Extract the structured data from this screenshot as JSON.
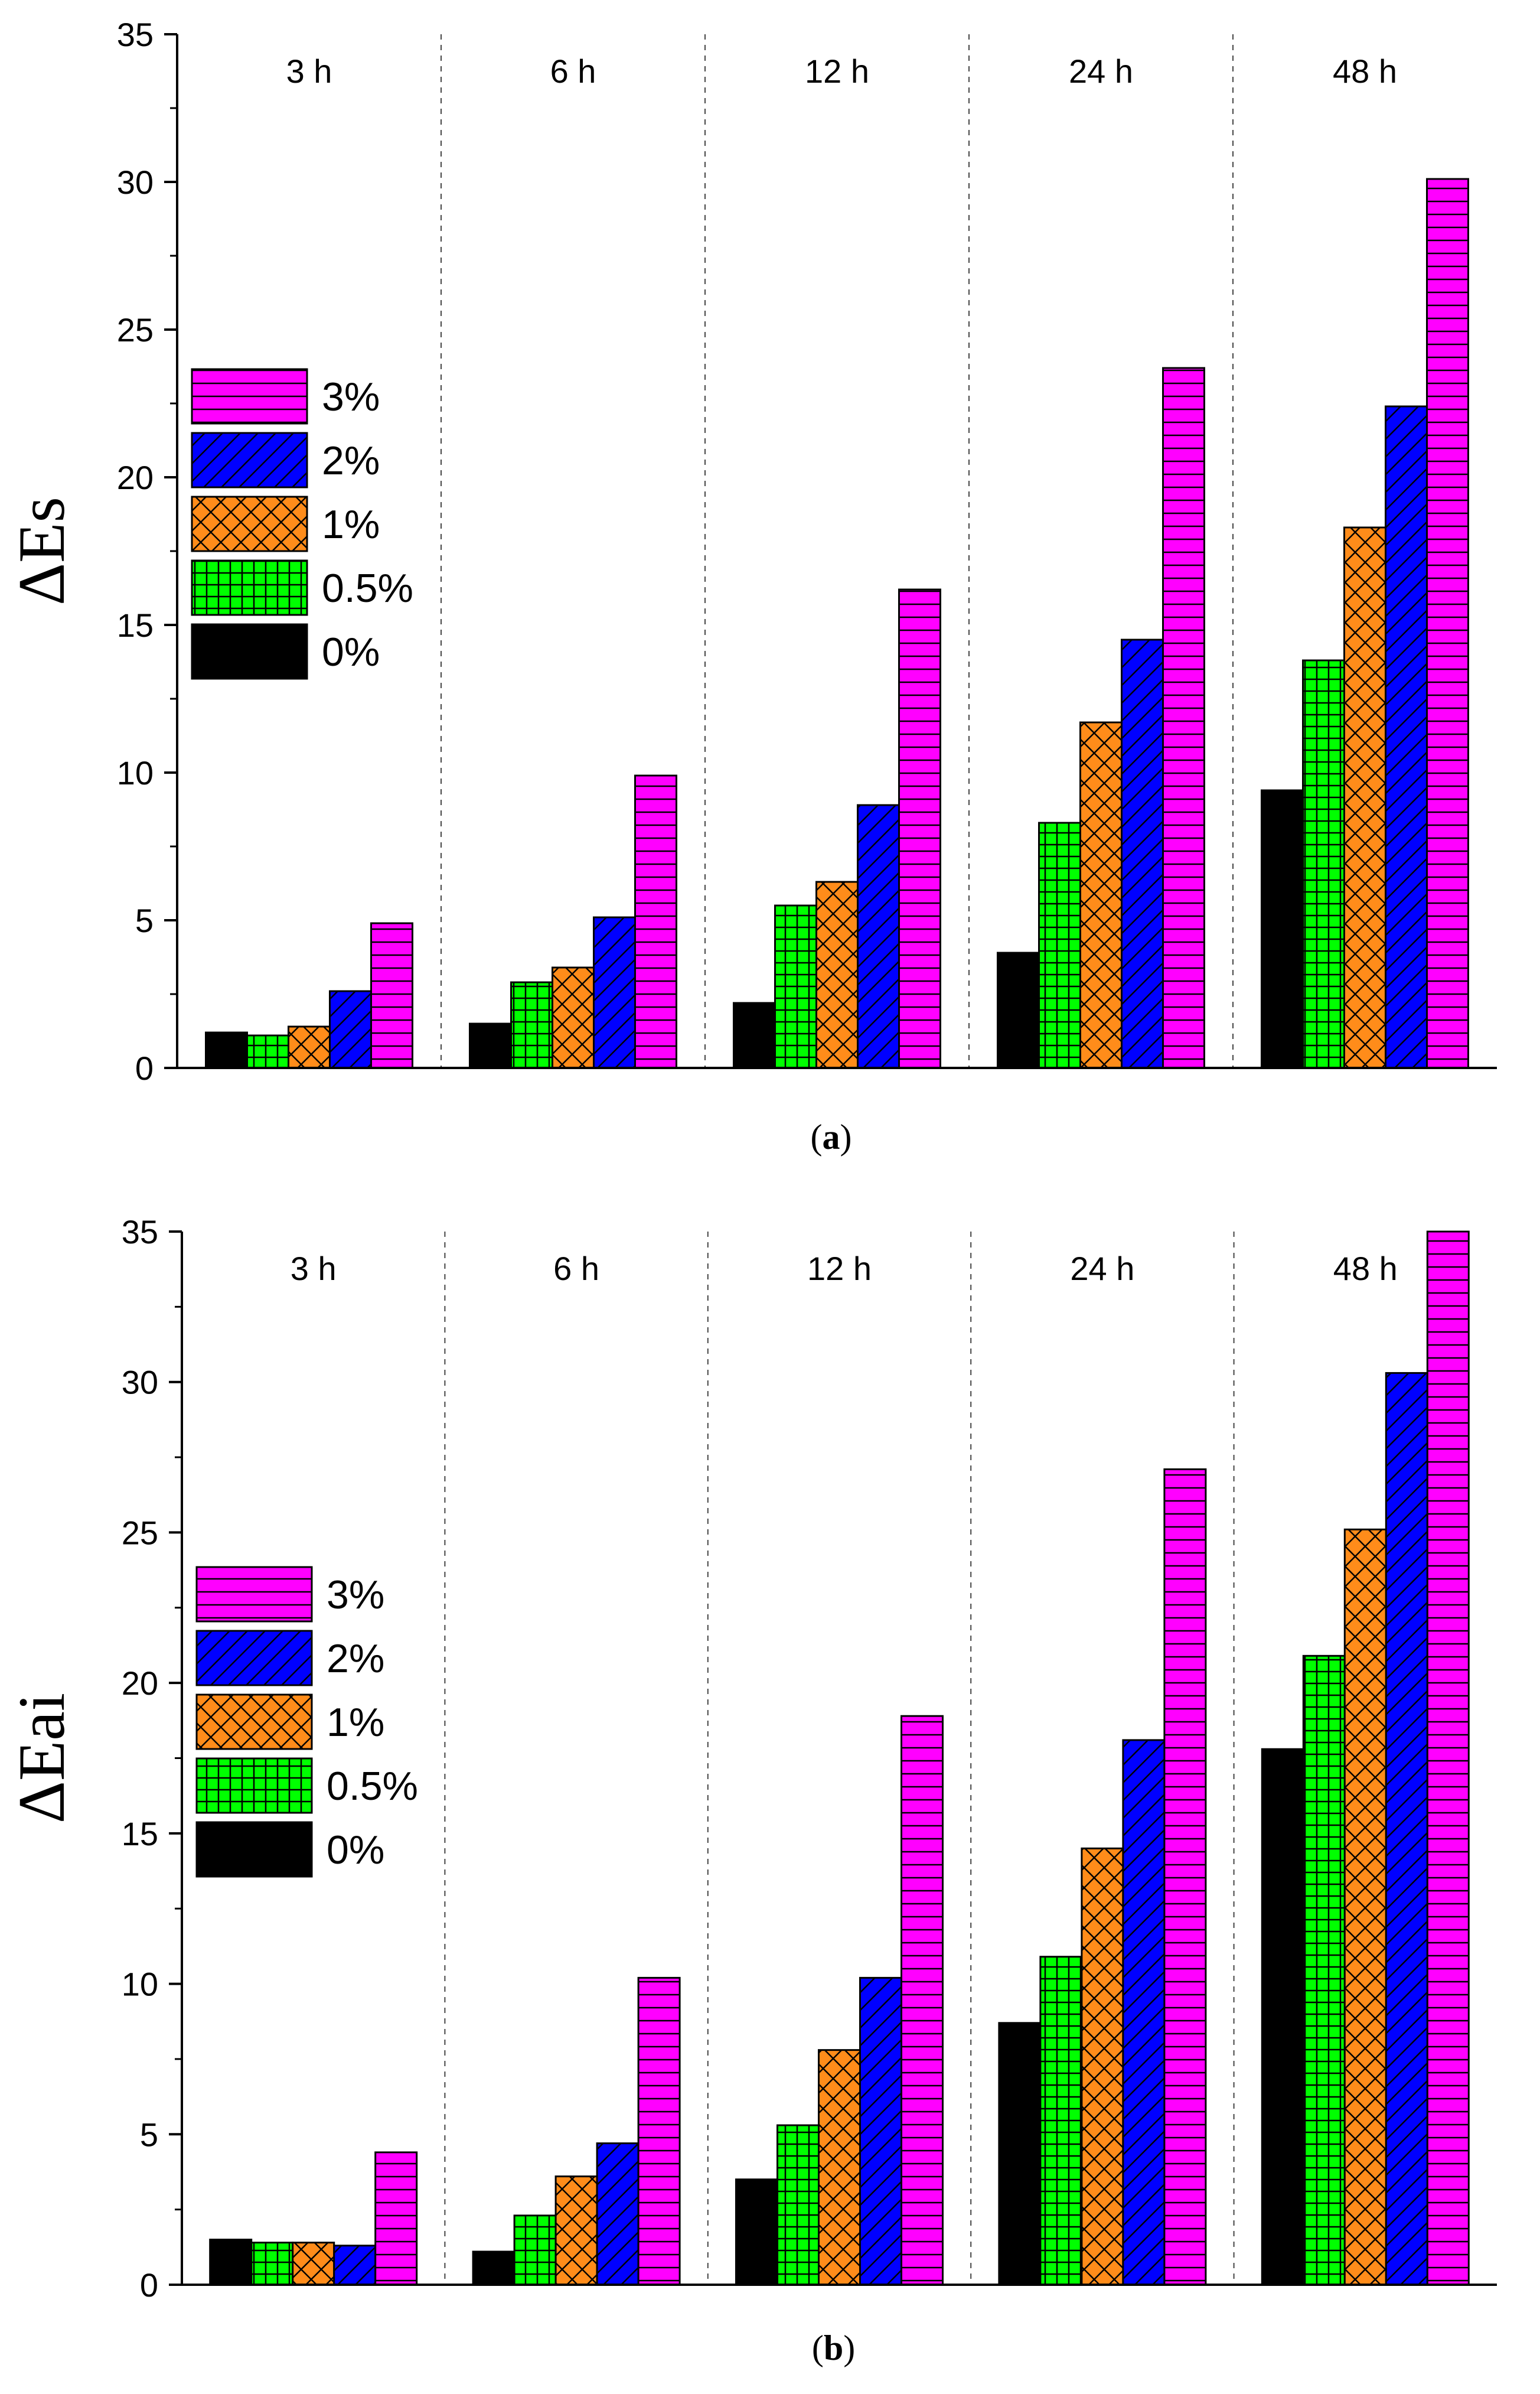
{
  "colors": {
    "0%": "#000000",
    "0.5%": "#00ff00",
    "1%": "#ff8c1a",
    "2%": "#0000ff",
    "3%": "#ff00ff"
  },
  "patterns": {
    "0%": "solid",
    "0.5%": "grid",
    "1%": "crosshatch",
    "2%": "diagonal",
    "3%": "horizontal"
  },
  "chart_data": [
    {
      "type": "bar",
      "caption": "(a)",
      "caption_letter": "a",
      "ylabel": "ΔEs",
      "ylim": [
        0,
        35
      ],
      "yticks": [
        0,
        5,
        10,
        15,
        20,
        25,
        30,
        35
      ],
      "categories": [
        "3 h",
        "6 h",
        "12 h",
        "24 h",
        "48 h"
      ],
      "legend_position": "upper-left",
      "series": [
        {
          "name": "0%",
          "values": [
            1.2,
            1.5,
            2.2,
            3.9,
            9.4
          ]
        },
        {
          "name": "0.5%",
          "values": [
            1.1,
            2.9,
            5.5,
            8.3,
            13.8
          ]
        },
        {
          "name": "1%",
          "values": [
            1.4,
            3.4,
            6.3,
            11.7,
            18.3
          ]
        },
        {
          "name": "2%",
          "values": [
            2.6,
            5.1,
            8.9,
            14.5,
            22.4
          ]
        },
        {
          "name": "3%",
          "values": [
            4.9,
            9.9,
            16.2,
            23.7,
            30.1
          ]
        }
      ],
      "legend_order": [
        "3%",
        "2%",
        "1%",
        "0.5%",
        "0%"
      ]
    },
    {
      "type": "bar",
      "caption": "(b)",
      "caption_letter": "b",
      "ylabel": "ΔEai",
      "ylim": [
        0,
        35
      ],
      "yticks": [
        0,
        5,
        10,
        15,
        20,
        25,
        30,
        35
      ],
      "categories": [
        "3 h",
        "6 h",
        "12 h",
        "24 h",
        "48 h"
      ],
      "legend_position": "upper-left",
      "series": [
        {
          "name": "0%",
          "values": [
            1.5,
            1.1,
            3.5,
            8.7,
            17.8
          ]
        },
        {
          "name": "0.5%",
          "values": [
            1.4,
            2.3,
            5.3,
            10.9,
            20.9
          ]
        },
        {
          "name": "1%",
          "values": [
            1.4,
            3.6,
            7.8,
            14.5,
            25.1
          ]
        },
        {
          "name": "2%",
          "values": [
            1.3,
            4.7,
            10.2,
            18.1,
            30.3
          ]
        },
        {
          "name": "3%",
          "values": [
            4.4,
            10.2,
            18.9,
            27.1,
            35.0
          ]
        }
      ],
      "legend_order": [
        "3%",
        "2%",
        "1%",
        "0.5%",
        "0%"
      ]
    }
  ]
}
